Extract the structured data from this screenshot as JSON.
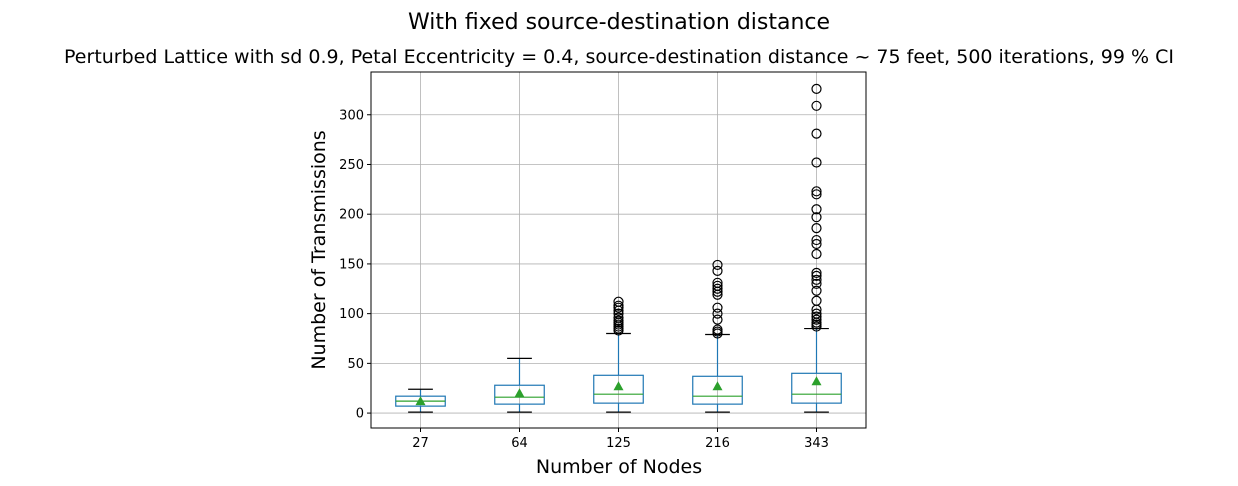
{
  "chart_data": {
    "type": "box",
    "suptitle": "With fixed source-destination distance",
    "title": "Perturbed Lattice with sd 0.9, Petal Eccentricity = 0.4, source-destination distance ~ 75 feet, 500 iterations, 99 % CI",
    "xlabel": "Number of Nodes",
    "ylabel": "Number of Transmissions",
    "ylim": [
      -15,
      343
    ],
    "yticks": [
      0,
      50,
      100,
      150,
      200,
      250,
      300
    ],
    "grid": true,
    "categories": [
      "27",
      "64",
      "125",
      "216",
      "343"
    ],
    "boxes": [
      {
        "category": "27",
        "whislo": 1,
        "q1": 7,
        "median": 12,
        "q3": 17,
        "whishi": 24,
        "mean": 12,
        "fliers": []
      },
      {
        "category": "64",
        "whislo": 1,
        "q1": 9,
        "median": 16,
        "q3": 28,
        "whishi": 55,
        "mean": 20,
        "fliers": []
      },
      {
        "category": "125",
        "whislo": 1,
        "q1": 10,
        "median": 19,
        "q3": 38,
        "whishi": 80,
        "mean": 27,
        "fliers": [
          83,
          85,
          87,
          89,
          91,
          93,
          96,
          100,
          103,
          106,
          108,
          112
        ]
      },
      {
        "category": "216",
        "whislo": 1,
        "q1": 9,
        "median": 17,
        "q3": 37,
        "whishi": 79,
        "mean": 27,
        "fliers": [
          80,
          82,
          84,
          94,
          100,
          106,
          119,
          122,
          125,
          128,
          131,
          143,
          149
        ]
      },
      {
        "category": "343",
        "whislo": 1,
        "q1": 10,
        "median": 19,
        "q3": 40,
        "whishi": 85,
        "mean": 32,
        "fliers": [
          87,
          89,
          91,
          94,
          97,
          100,
          104,
          113,
          123,
          130,
          134,
          138,
          141,
          160,
          170,
          174,
          186,
          197,
          205,
          220,
          223,
          252,
          281,
          309,
          326
        ]
      }
    ],
    "colors": {
      "box": "#1f77b4",
      "median": "#2ca02c",
      "mean_marker": "#2ca02c",
      "whisker_cap": "#000000",
      "flier": "#000000",
      "grid": "#b0b0b0"
    }
  }
}
